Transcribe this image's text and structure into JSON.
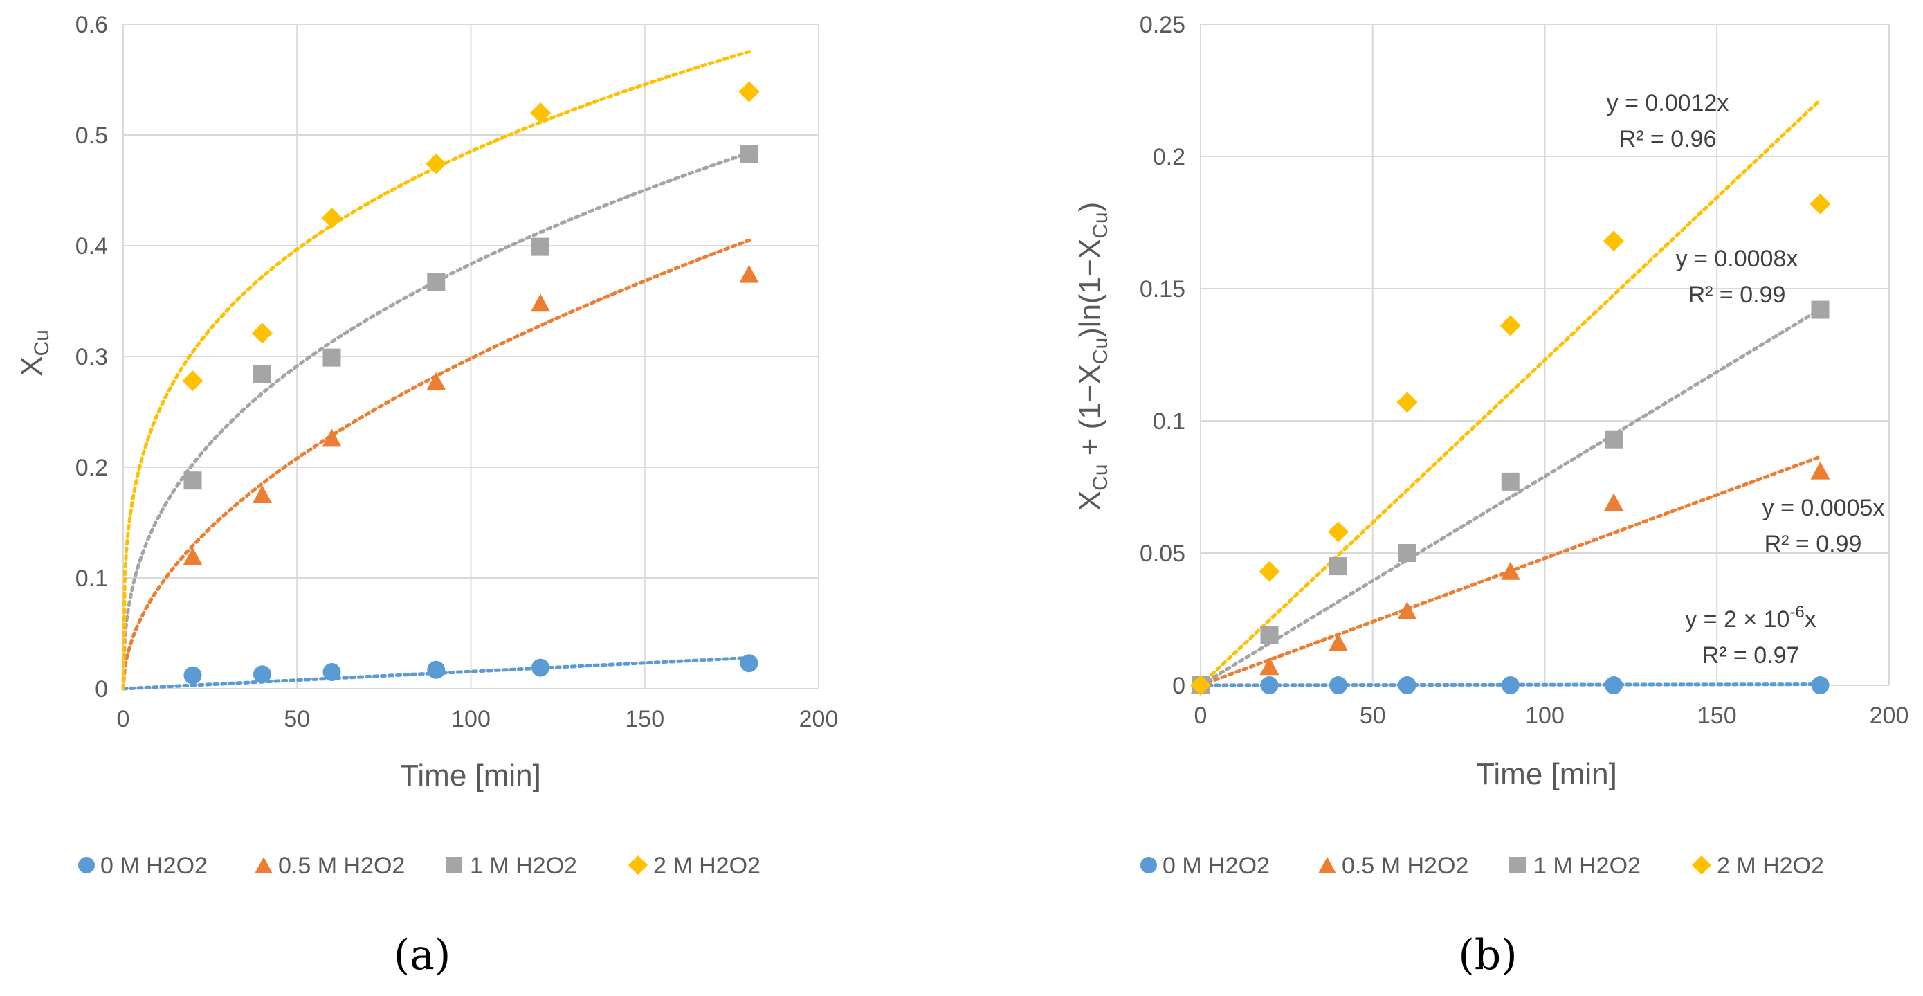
{
  "colors": {
    "s0": "#5b9bd5",
    "s05": "#ed7d31",
    "s1": "#a5a5a5",
    "s2": "#ffc000",
    "grid": "#d9d9d9"
  },
  "chart_data": [
    {
      "type": "scatter",
      "panel_label": "(a)",
      "xlabel": "Time [min]",
      "ylabel": {
        "main": "X",
        "sub": "Cu"
      },
      "xlim": [
        0,
        200
      ],
      "ylim": [
        0,
        0.6
      ],
      "xticks": [
        0,
        50,
        100,
        150,
        200
      ],
      "yticks": [
        0,
        0.1,
        0.2,
        0.3,
        0.4,
        0.5,
        0.6
      ],
      "grid": true,
      "legend_position": "bottom",
      "series": [
        {
          "name": "0 M H2O2",
          "marker": "circle",
          "color_key": "s0",
          "x": [
            20,
            40,
            60,
            90,
            120,
            180
          ],
          "y": [
            0.012,
            0.013,
            0.015,
            0.017,
            0.019,
            0.023
          ],
          "trend": {
            "kind": "linear",
            "a": 0.000155
          }
        },
        {
          "name": "0.5 M H2O2",
          "marker": "triangle",
          "color_key": "s05",
          "x": [
            20,
            40,
            60,
            90,
            120,
            180
          ],
          "y": [
            0.119,
            0.175,
            0.226,
            0.277,
            0.348,
            0.374
          ],
          "trend": {
            "kind": "power",
            "a": 0.0272,
            "b": 0.52
          }
        },
        {
          "name": "1 M H2O2",
          "marker": "square",
          "color_key": "s1",
          "x": [
            20,
            40,
            60,
            90,
            120,
            180
          ],
          "y": [
            0.188,
            0.284,
            0.299,
            0.367,
            0.399,
            0.483
          ],
          "trend": {
            "kind": "power",
            "a": 0.0619,
            "b": 0.396
          }
        },
        {
          "name": "2 M H2O2",
          "marker": "diamond",
          "color_key": "s2",
          "x": [
            20,
            40,
            60,
            90,
            120,
            180
          ],
          "y": [
            0.278,
            0.321,
            0.425,
            0.474,
            0.52,
            0.539
          ],
          "trend": {
            "kind": "power",
            "a": 0.1276,
            "b": 0.29
          }
        }
      ]
    },
    {
      "type": "scatter",
      "panel_label": "(b)",
      "xlabel": "Time [min]",
      "ylabel": {
        "p1": "X",
        "s1": "Cu",
        "p2": " + (1−X",
        "s2": "Cu",
        "p3": ")ln(1−X",
        "s3": "Cu",
        "p4": ")"
      },
      "xlim": [
        0,
        200
      ],
      "ylim": [
        0,
        0.25
      ],
      "xticks": [
        0,
        50,
        100,
        150,
        200
      ],
      "yticks": [
        0,
        0.05,
        0.1,
        0.15,
        0.2,
        0.25
      ],
      "grid": true,
      "legend_position": "bottom",
      "series": [
        {
          "name": "0 M H2O2",
          "marker": "circle",
          "color_key": "s0",
          "x": [
            0,
            20,
            40,
            60,
            90,
            120,
            180
          ],
          "y": [
            0,
            0,
            0,
            0,
            0,
            0,
            0
          ],
          "trend": {
            "kind": "linear",
            "a": 2e-06
          }
        },
        {
          "name": "0.5 M H2O2",
          "marker": "triangle",
          "color_key": "s05",
          "x": [
            0,
            20,
            40,
            60,
            90,
            120,
            180
          ],
          "y": [
            0,
            0.007,
            0.016,
            0.028,
            0.043,
            0.069,
            0.081
          ],
          "trend": {
            "kind": "linear",
            "a": 0.00048
          }
        },
        {
          "name": "1 M H2O2",
          "marker": "square",
          "color_key": "s1",
          "x": [
            0,
            20,
            40,
            60,
            90,
            120,
            180
          ],
          "y": [
            0,
            0.019,
            0.045,
            0.05,
            0.077,
            0.093,
            0.142
          ],
          "trend": {
            "kind": "linear",
            "a": 0.00079
          }
        },
        {
          "name": "2 M H2O2",
          "marker": "diamond",
          "color_key": "s2",
          "x": [
            0,
            20,
            40,
            60,
            90,
            120,
            180
          ],
          "y": [
            0,
            0.043,
            0.058,
            0.107,
            0.136,
            0.168,
            0.182
          ],
          "trend": {
            "kind": "linear",
            "a": 0.00123
          }
        }
      ],
      "annotations": [
        {
          "eq": "y = 0.0012x",
          "r2": "R² = 0.96"
        },
        {
          "eq": "y = 0.0008x",
          "r2": "R² = 0.99"
        },
        {
          "eq": "y = 0.0005x",
          "r2": "R² = 0.99"
        },
        {
          "eq_pre": "y = 2 × 10",
          "eq_exp": "-6",
          "eq_post": "x",
          "r2": "R² = 0.97"
        }
      ]
    }
  ]
}
